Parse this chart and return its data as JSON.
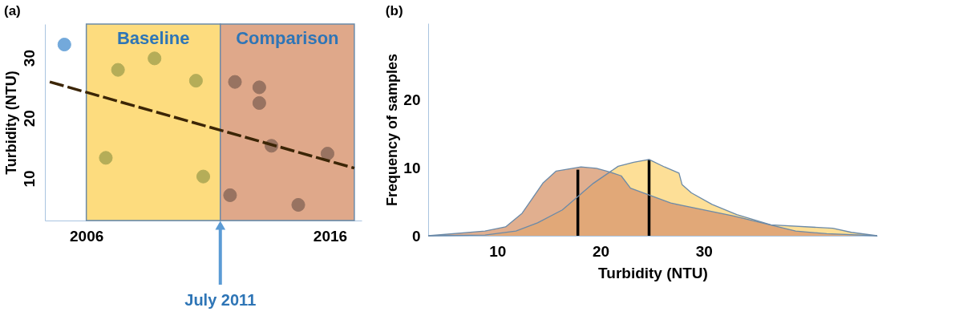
{
  "chart_data": [
    {
      "type": "scatter",
      "title": "(a)",
      "ylabel": "Turbidity (NTU)",
      "xlim": [
        2004.3,
        2017.3
      ],
      "ylim": [
        3,
        35.6
      ],
      "xticks": [
        2006,
        2016
      ],
      "yticks": [
        10,
        20,
        30
      ],
      "grid": false,
      "marker": "circle",
      "bands": [
        {
          "axis": "x",
          "from": 2006,
          "to": 2011.5,
          "label": "Baseline",
          "color": "#fddc7e"
        },
        {
          "axis": "x",
          "from": 2011.5,
          "to": 2017,
          "label": "Comparison",
          "color": "#dfa88a"
        }
      ],
      "annotations": [
        {
          "text": "July 2011",
          "x": 2011.5,
          "y": 3
        }
      ],
      "series": [
        {
          "color": "#5b9bd5",
          "x": [
            2005.1
          ],
          "values": [
            32.2
          ]
        },
        {
          "color": "#a9a552",
          "x": [
            2006.8,
            2007.3,
            2008.8,
            2010.5,
            2010.8
          ],
          "values": [
            13.4,
            28.0,
            29.9,
            26.2,
            10.3
          ]
        },
        {
          "color": "#8c6a5a",
          "x": [
            2011.9,
            2012.1,
            2013.1,
            2013.1,
            2013.6,
            2014.7,
            2015.9
          ],
          "values": [
            7.2,
            26.0,
            25.1,
            22.5,
            15.4,
            5.6,
            14.1
          ]
        },
        {
          "type": "line",
          "line_style": "dashed",
          "marker": "none",
          "color": "#3b2506",
          "x": [
            2004.5,
            2017.0
          ],
          "values": [
            26.0,
            11.7
          ]
        }
      ]
    },
    {
      "type": "area",
      "title": "(b)",
      "xlabel": "Turbidity (NTU)",
      "ylabel": "Frequency of samples",
      "xlim": [
        3.3,
        46.8
      ],
      "ylim": [
        0,
        31.2
      ],
      "xticks": [
        10,
        20,
        30
      ],
      "yticks": [
        0,
        10,
        20
      ],
      "grid": false,
      "series": [
        {
          "color": "#fcd67a",
          "x": [
            3.3,
            8.8,
            11.8,
            13.9,
            16.3,
            19.3,
            21.7,
            23.2,
            24.7,
            26.2,
            27.6,
            27.9,
            28.8,
            30.8,
            33.2,
            36.5,
            42.5,
            44.3,
            46.8
          ],
          "values": [
            0,
            0.1,
            0.7,
            1.9,
            3.8,
            7.7,
            10.2,
            10.8,
            11.2,
            10.1,
            9.2,
            7.5,
            6.3,
            4.6,
            3.1,
            1.6,
            1.1,
            0.5,
            0
          ]
        },
        {
          "color": "#d9996f",
          "x": [
            3.3,
            8.8,
            10.8,
            12.4,
            14.4,
            15.7,
            18.1,
            19.6,
            20.8,
            22.0,
            22.9,
            26.8,
            32.9,
            38.9,
            41.9,
            46.8
          ],
          "values": [
            0,
            0.7,
            1.3,
            3.3,
            7.7,
            9.5,
            10.1,
            9.9,
            9.4,
            8.8,
            7.0,
            4.8,
            2.9,
            0.7,
            0.3,
            0
          ]
        },
        {
          "type": "line",
          "color": "#000000",
          "x": [
            17.8,
            17.8
          ],
          "values": [
            0,
            9.7
          ]
        },
        {
          "type": "line",
          "color": "#000000",
          "x": [
            24.7,
            24.7
          ],
          "values": [
            0,
            11.2
          ]
        }
      ]
    }
  ]
}
